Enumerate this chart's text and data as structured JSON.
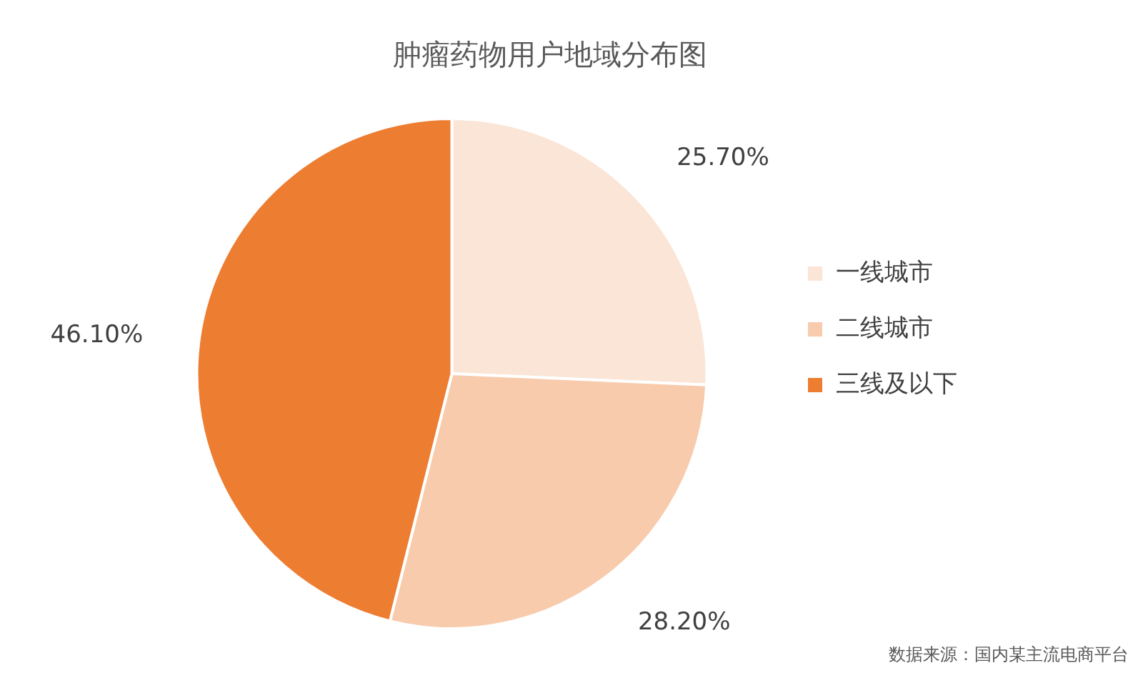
{
  "chart_data": {
    "type": "pie",
    "title": "肿瘤药物用户地域分布图",
    "categories": [
      "一线城市",
      "二线城市",
      "三线及以下"
    ],
    "values": [
      25.7,
      28.2,
      46.1
    ],
    "value_labels": [
      "25.70%",
      "28.20%",
      "46.10%"
    ],
    "colors": [
      "#fbe5d6",
      "#f8cbad",
      "#ed7d31"
    ],
    "legend": "right",
    "annotations": [
      "数据来源：国内某主流电商平台"
    ]
  }
}
